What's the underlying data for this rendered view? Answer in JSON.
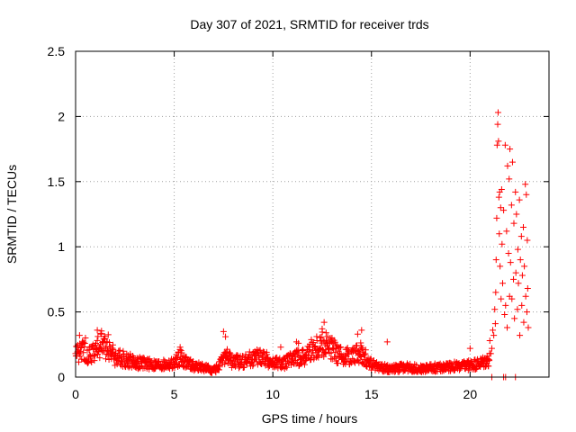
{
  "chart_data": {
    "type": "scatter",
    "title": "Day 307 of 2021, SRMTID for receiver trds",
    "xlabel": "GPS time / hours",
    "ylabel": "SRMTID / TECUs",
    "xlim": [
      0,
      24
    ],
    "ylim": [
      0,
      2.5
    ],
    "xticks": [
      0,
      5,
      10,
      15,
      20
    ],
    "yticks": [
      0,
      0.5,
      1,
      1.5,
      2,
      2.5
    ],
    "xtick_labels": [
      "0",
      "5",
      "10",
      "15",
      "20"
    ],
    "ytick_labels": [
      "0",
      "0.5",
      "1",
      "1.5",
      "2",
      "2.5"
    ],
    "grid": true,
    "marker": "+",
    "color": "#ff0000",
    "profile_hours": [
      0,
      0.3,
      0.7,
      1.0,
      1.3,
      1.7,
      2.0,
      2.5,
      3.0,
      3.5,
      4.0,
      4.5,
      5.0,
      5.3,
      5.6,
      6.0,
      6.5,
      7.0,
      7.3,
      7.6,
      8.0,
      8.5,
      9.0,
      9.5,
      10.0,
      10.5,
      11.0,
      11.5,
      12.0,
      12.5,
      13.0,
      13.5,
      14.0,
      14.5,
      15.0,
      15.5,
      16.0,
      16.5,
      17.0,
      17.5,
      18.0,
      18.5,
      19.0,
      19.5,
      20.0,
      20.5,
      21.0
    ],
    "profile_level": [
      0.18,
      0.2,
      0.17,
      0.2,
      0.24,
      0.22,
      0.15,
      0.13,
      0.11,
      0.1,
      0.09,
      0.09,
      0.1,
      0.15,
      0.11,
      0.08,
      0.07,
      0.05,
      0.08,
      0.16,
      0.11,
      0.12,
      0.14,
      0.15,
      0.1,
      0.1,
      0.13,
      0.15,
      0.2,
      0.24,
      0.2,
      0.15,
      0.16,
      0.18,
      0.09,
      0.07,
      0.06,
      0.07,
      0.07,
      0.06,
      0.07,
      0.07,
      0.08,
      0.08,
      0.09,
      0.1,
      0.13
    ],
    "spike_points": [
      {
        "x": 0.2,
        "y": 0.32
      },
      {
        "x": 0.5,
        "y": 0.3
      },
      {
        "x": 1.1,
        "y": 0.36
      },
      {
        "x": 1.3,
        "y": 0.33
      },
      {
        "x": 5.3,
        "y": 0.23
      },
      {
        "x": 7.5,
        "y": 0.35
      },
      {
        "x": 7.6,
        "y": 0.31
      },
      {
        "x": 10.4,
        "y": 0.23
      },
      {
        "x": 11.2,
        "y": 0.27
      },
      {
        "x": 11.3,
        "y": 0.26
      },
      {
        "x": 12.5,
        "y": 0.37
      },
      {
        "x": 12.6,
        "y": 0.42
      },
      {
        "x": 12.7,
        "y": 0.34
      },
      {
        "x": 13.0,
        "y": 0.3
      },
      {
        "x": 14.3,
        "y": 0.33
      },
      {
        "x": 14.5,
        "y": 0.36
      },
      {
        "x": 15.8,
        "y": 0.27
      },
      {
        "x": 20.0,
        "y": 0.22
      },
      {
        "x": 21.0,
        "y": 0.28
      }
    ],
    "storm_points": [
      {
        "x": 21.05,
        "y": 0.18
      },
      {
        "x": 21.1,
        "y": 0.22
      },
      {
        "x": 21.15,
        "y": 0.36
      },
      {
        "x": 21.2,
        "y": 0.32
      },
      {
        "x": 21.25,
        "y": 0.52
      },
      {
        "x": 21.28,
        "y": 0.41
      },
      {
        "x": 21.3,
        "y": 0.65
      },
      {
        "x": 21.32,
        "y": 0.9
      },
      {
        "x": 21.35,
        "y": 1.22
      },
      {
        "x": 21.37,
        "y": 1.78
      },
      {
        "x": 21.4,
        "y": 1.94
      },
      {
        "x": 21.42,
        "y": 2.03
      },
      {
        "x": 21.44,
        "y": 1.81
      },
      {
        "x": 21.46,
        "y": 1.38
      },
      {
        "x": 21.48,
        "y": 1.1
      },
      {
        "x": 21.5,
        "y": 1.42
      },
      {
        "x": 21.52,
        "y": 0.85
      },
      {
        "x": 21.55,
        "y": 1.3
      },
      {
        "x": 21.57,
        "y": 0.6
      },
      {
        "x": 21.6,
        "y": 1.44
      },
      {
        "x": 21.62,
        "y": 1.02
      },
      {
        "x": 21.65,
        "y": 0.72
      },
      {
        "x": 21.7,
        "y": 1.28
      },
      {
        "x": 21.75,
        "y": 0.48
      },
      {
        "x": 21.78,
        "y": 1.78
      },
      {
        "x": 21.8,
        "y": 0.55
      },
      {
        "x": 21.85,
        "y": 1.12
      },
      {
        "x": 21.88,
        "y": 0.38
      },
      {
        "x": 21.9,
        "y": 1.62
      },
      {
        "x": 21.95,
        "y": 0.95
      },
      {
        "x": 21.98,
        "y": 1.52
      },
      {
        "x": 22.0,
        "y": 0.62
      },
      {
        "x": 22.02,
        "y": 1.75
      },
      {
        "x": 22.05,
        "y": 0.88
      },
      {
        "x": 22.1,
        "y": 1.32
      },
      {
        "x": 22.12,
        "y": 0.6
      },
      {
        "x": 22.15,
        "y": 1.65
      },
      {
        "x": 22.2,
        "y": 0.75
      },
      {
        "x": 22.22,
        "y": 1.18
      },
      {
        "x": 22.25,
        "y": 0.45
      },
      {
        "x": 22.3,
        "y": 1.42
      },
      {
        "x": 22.32,
        "y": 0.8
      },
      {
        "x": 22.35,
        "y": 1.25
      },
      {
        "x": 22.4,
        "y": 0.52
      },
      {
        "x": 22.42,
        "y": 0.98
      },
      {
        "x": 22.45,
        "y": 0.72
      },
      {
        "x": 22.5,
        "y": 1.36
      },
      {
        "x": 22.52,
        "y": 0.32
      },
      {
        "x": 22.55,
        "y": 0.9
      },
      {
        "x": 22.6,
        "y": 1.08
      },
      {
        "x": 22.62,
        "y": 0.55
      },
      {
        "x": 22.65,
        "y": 0.78
      },
      {
        "x": 22.7,
        "y": 1.15
      },
      {
        "x": 22.72,
        "y": 0.42
      },
      {
        "x": 22.75,
        "y": 0.85
      },
      {
        "x": 22.8,
        "y": 1.48
      },
      {
        "x": 22.82,
        "y": 0.62
      },
      {
        "x": 22.85,
        "y": 1.4
      },
      {
        "x": 22.88,
        "y": 0.5
      },
      {
        "x": 22.9,
        "y": 1.05
      },
      {
        "x": 22.92,
        "y": 0.68
      },
      {
        "x": 22.95,
        "y": 0.38
      },
      {
        "x": 21.1,
        "y": 0.0
      },
      {
        "x": 21.7,
        "y": 0.0
      },
      {
        "x": 21.8,
        "y": 0.0
      },
      {
        "x": 22.3,
        "y": 0.0
      }
    ]
  }
}
